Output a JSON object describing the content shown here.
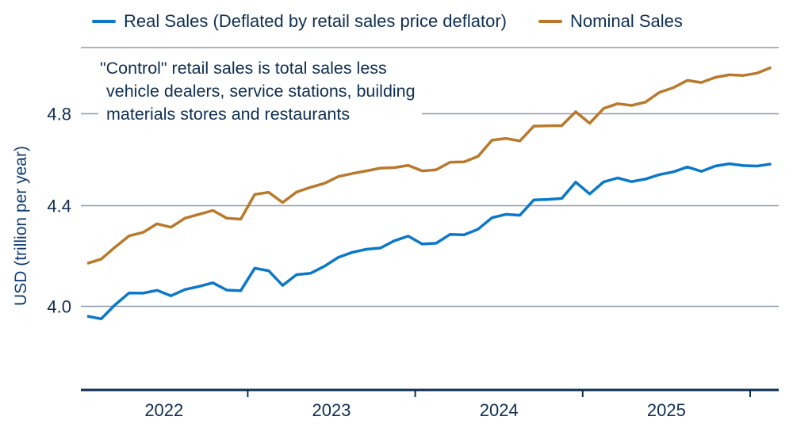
{
  "chart_data": {
    "type": "line",
    "title": "",
    "xlabel": "",
    "ylabel": "USD (trillion per year)",
    "y_scale": "log",
    "ylim": [
      3.7,
      5.1
    ],
    "yticks": [
      4.0,
      4.4,
      4.8
    ],
    "ytick_labels": [
      "4.0",
      "4.4",
      "4.8"
    ],
    "xtick_labels": [
      "2022",
      "2023",
      "2024",
      "2025"
    ],
    "x_range": [
      "2022-01",
      "2026-02"
    ],
    "grid": "horizontal",
    "legend_position": "top",
    "annotation": [
      "\"Control\" retail sales is total sales less",
      "vehicle dealers, service stations, building",
      "materials stores and restaurants"
    ],
    "x": [
      "2022-01",
      "2022-02",
      "2022-03",
      "2022-04",
      "2022-05",
      "2022-06",
      "2022-07",
      "2022-08",
      "2022-09",
      "2022-10",
      "2022-11",
      "2022-12",
      "2023-01",
      "2023-02",
      "2023-03",
      "2023-04",
      "2023-05",
      "2023-06",
      "2023-07",
      "2023-08",
      "2023-09",
      "2023-10",
      "2023-11",
      "2023-12",
      "2024-01",
      "2024-02",
      "2024-03",
      "2024-04",
      "2024-05",
      "2024-06",
      "2024-07",
      "2024-08",
      "2024-09",
      "2024-10",
      "2024-11",
      "2024-12",
      "2025-01",
      "2025-02",
      "2025-03",
      "2025-04",
      "2025-05",
      "2025-06",
      "2025-07",
      "2025-08",
      "2025-09",
      "2025-10",
      "2025-11",
      "2025-12",
      "2026-01",
      "2026-02"
    ],
    "series": [
      {
        "name": "Real Sales (Deflated by retail sales price deflator)",
        "color": "#0b78c8",
        "values": [
          3.963,
          3.953,
          4.006,
          4.051,
          4.05,
          4.061,
          4.04,
          4.064,
          4.076,
          4.09,
          4.062,
          4.06,
          4.147,
          4.137,
          4.08,
          4.122,
          4.127,
          4.155,
          4.19,
          4.21,
          4.222,
          4.227,
          4.256,
          4.275,
          4.243,
          4.246,
          4.282,
          4.28,
          4.303,
          4.35,
          4.364,
          4.36,
          4.424,
          4.426,
          4.43,
          4.499,
          4.449,
          4.5,
          4.517,
          4.501,
          4.512,
          4.531,
          4.543,
          4.564,
          4.545,
          4.568,
          4.578,
          4.57,
          4.568,
          4.577
        ]
      },
      {
        "name": "Nominal Sales",
        "color": "#b9792c",
        "values": [
          4.166,
          4.183,
          4.231,
          4.276,
          4.29,
          4.325,
          4.311,
          4.348,
          4.364,
          4.38,
          4.348,
          4.344,
          4.447,
          4.456,
          4.413,
          4.457,
          4.477,
          4.494,
          4.523,
          4.536,
          4.547,
          4.559,
          4.561,
          4.571,
          4.547,
          4.552,
          4.585,
          4.586,
          4.61,
          4.681,
          4.689,
          4.678,
          4.744,
          4.745,
          4.746,
          4.809,
          4.757,
          4.824,
          4.846,
          4.838,
          4.853,
          4.898,
          4.92,
          4.954,
          4.944,
          4.968,
          4.98,
          4.977,
          4.988,
          5.015
        ]
      }
    ]
  }
}
